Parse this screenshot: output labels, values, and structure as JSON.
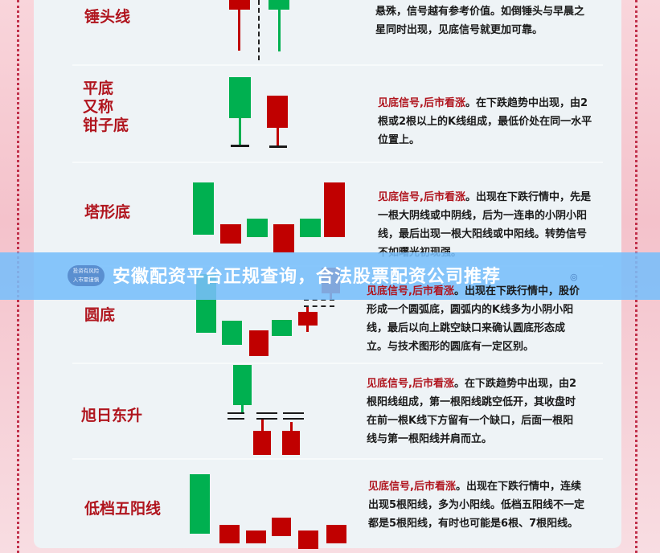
{
  "rows": [
    {
      "label": "锤头线",
      "highlight": "",
      "text": "悬殊，信号越有参考价值。如倒锤头与早晨之星同时出现，见底信号就更加可靠。"
    },
    {
      "label_lines": [
        "平底",
        "又称",
        "钳子底"
      ],
      "highlight": "见底信号,后市看涨",
      "text": "。在下跌趋势中出现，由2根或2根以上的K线组成，最低价处在同一水平位置上。"
    },
    {
      "label": "塔形底",
      "highlight": "见底信号,后市看涨",
      "text": "。出现在下跌行情中，先是一根大阴线或中阴线，后为一连串的小阴小阳线，最后出现一根大阳线或中阳线。转势信号不如曙光初现强。"
    },
    {
      "label": "圆底",
      "highlight": "见底信号,后市看涨",
      "text": "。出现在下跌行情中，股价形成一个圆弧底，圆弧内的K线多为小阴小阳线，最后以向上跳空缺口来确认圆底形态成立。与技术图形的圆底有一定区别。"
    },
    {
      "label": "旭日东升",
      "highlight": "见底信号,后市看涨",
      "text": "。在下跌趋势中出现，由2根阳线组成，第一根阳线跳空低开，其收盘时在前一根K线下方留有一个缺口，后面一根阳线与第一根阳线并肩而立。"
    },
    {
      "label": "低档五阳线",
      "highlight": "见底信号,后市看涨",
      "text": "。出现在下跌行情中，连续出现5根阳线，多为小阳线。低档五阳线不一定都是5根阳线，有时也可能是6根、7根阳线。"
    }
  ],
  "banner": {
    "title": "安徽配资平台正规查询，合法股票配资公司推荐",
    "badge_line1": "投资有风险",
    "badge_line2": "入市需谨慎",
    "icon": "eye-icon"
  },
  "colors": {
    "up_candle": "#00b050",
    "down_candle": "#c00000",
    "label": "#b0151e",
    "banner": "#78befa"
  }
}
